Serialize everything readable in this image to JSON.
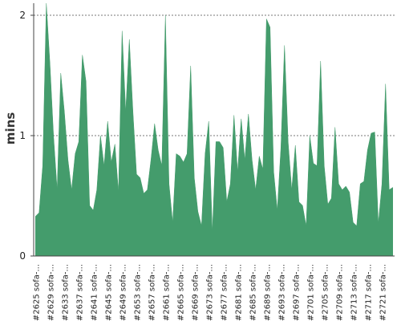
{
  "chart_data": {
    "type": "area",
    "y_label": "mins",
    "color": "#449c6c",
    "grid": true,
    "ylim": [
      0,
      2.1
    ],
    "yticks": [
      0,
      1,
      2
    ],
    "categories": [
      "#2625 sofa-...",
      null,
      null,
      null,
      "#2629 sofa-...",
      null,
      null,
      null,
      "#2633 sofa-...",
      null,
      null,
      null,
      "#2637 sofa-...",
      null,
      null,
      null,
      "#2641 sofa-...",
      null,
      null,
      null,
      "#2645 sofa-...",
      null,
      null,
      null,
      "#2649 sofa-...",
      null,
      null,
      null,
      "#2653 sofa-...",
      null,
      null,
      null,
      "#2657 sofa-...",
      null,
      null,
      null,
      "#2661 sofa-...",
      null,
      null,
      null,
      "#2665 sofa-...",
      null,
      null,
      null,
      "#2669 sofa-...",
      null,
      null,
      null,
      "#2673 sofa-...",
      null,
      null,
      null,
      "#2677 sofa-...",
      null,
      null,
      null,
      "#2681 sofa-...",
      null,
      null,
      null,
      "#2685 sofa-...",
      null,
      null,
      null,
      "#2689 sofa-...",
      null,
      null,
      null,
      "#2693 sofa-...",
      null,
      null,
      null,
      "#2697 sofa-...",
      null,
      null,
      null,
      "#2701 sofa-...",
      null,
      null,
      null,
      "#2705 sofa-...",
      null,
      null,
      null,
      "#2709 sofa-...",
      null,
      null,
      null,
      "#2713 sofa-...",
      null,
      null,
      null,
      "#2717 sofa-...",
      null,
      null,
      null,
      "#2721 sofa-...",
      null,
      null,
      null
    ],
    "values": [
      0.33,
      0.36,
      0.75,
      2.1,
      1.6,
      1.0,
      0.55,
      1.52,
      1.2,
      0.8,
      0.55,
      0.85,
      0.95,
      1.67,
      1.45,
      0.42,
      0.38,
      0.55,
      1.0,
      0.75,
      1.12,
      0.78,
      0.93,
      0.53,
      1.87,
      1.2,
      1.8,
      1.2,
      0.68,
      0.65,
      0.52,
      0.55,
      0.8,
      1.1,
      0.88,
      0.75,
      2.0,
      0.6,
      0.28,
      0.85,
      0.83,
      0.78,
      0.85,
      1.58,
      0.65,
      0.37,
      0.25,
      0.85,
      1.12,
      0.2,
      0.95,
      0.95,
      0.9,
      0.45,
      0.6,
      1.17,
      0.7,
      1.14,
      0.8,
      1.18,
      0.8,
      0.55,
      0.83,
      0.72,
      1.97,
      1.9,
      0.7,
      0.38,
      0.9,
      1.75,
      0.95,
      0.55,
      0.92,
      0.45,
      0.42,
      0.25,
      1.0,
      0.77,
      0.75,
      1.62,
      0.75,
      0.43,
      0.48,
      1.07,
      0.6,
      0.55,
      0.58,
      0.53,
      0.28,
      0.25,
      0.6,
      0.62,
      0.88,
      1.02,
      1.03,
      0.27,
      0.6,
      1.43,
      0.55,
      0.57
    ]
  }
}
